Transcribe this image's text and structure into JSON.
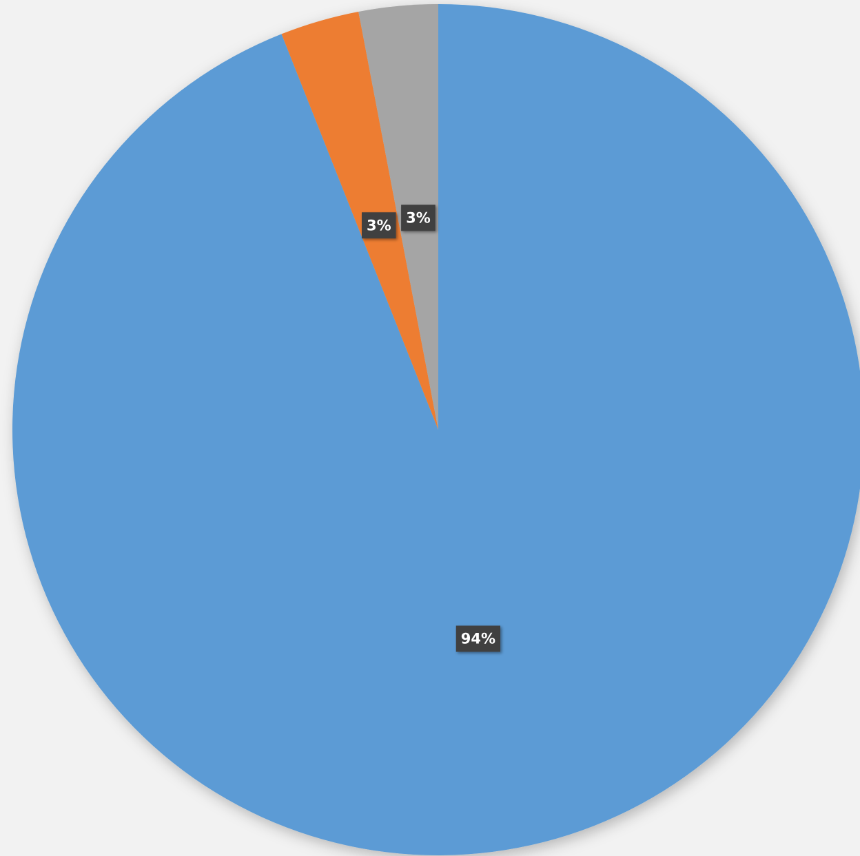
{
  "chart_data": {
    "type": "pie",
    "values": [
      94,
      3,
      3
    ],
    "value_labels": [
      "94%",
      "3%",
      "3%"
    ],
    "colors": [
      "#5b9bd5",
      "#ed7d31",
      "#a5a5a5"
    ]
  }
}
